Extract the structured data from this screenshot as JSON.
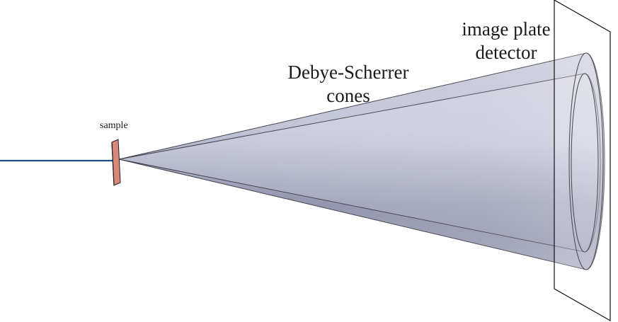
{
  "labels": {
    "sample": "sample",
    "cones_line1": "Debye-Scherrer",
    "cones_line2": "cones",
    "detector_line1": "image plate",
    "detector_line2": "detector"
  },
  "colors": {
    "incident_beam": "#1d4f86",
    "sample_fill": "#d9877a",
    "cone_dark": "#8a8ea8",
    "cone_light": "#d8d9e6",
    "cone_edge": "#3a3a4a",
    "detector_plate": "#ffffff",
    "outline": "#222222"
  }
}
